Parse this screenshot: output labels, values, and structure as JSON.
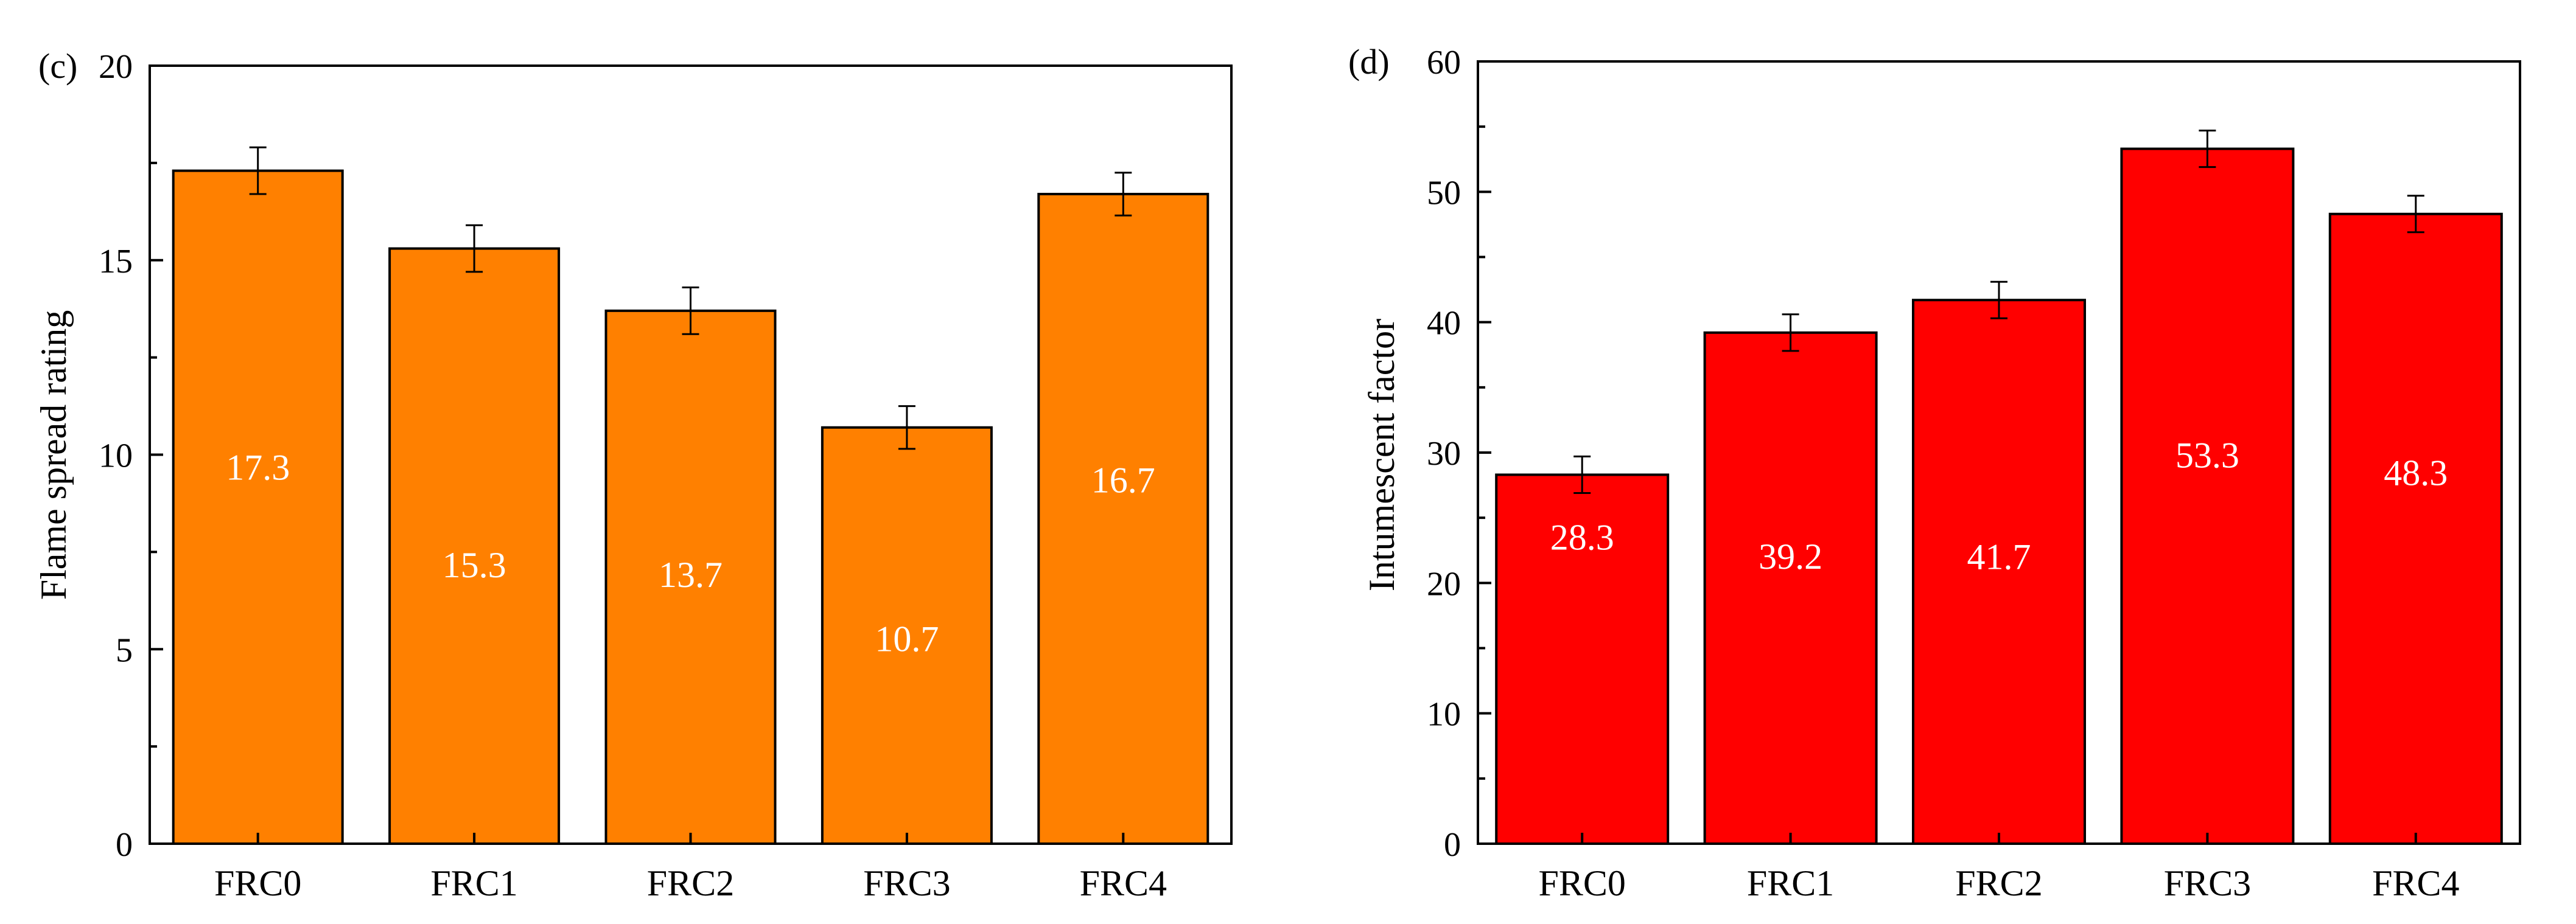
{
  "chart_data": [
    {
      "panel_label": "(c)",
      "type": "bar",
      "categories": [
        "FRC0",
        "FRC1",
        "FRC2",
        "FRC3",
        "FRC4"
      ],
      "values": [
        17.3,
        15.3,
        13.7,
        10.7,
        16.7
      ],
      "errors": [
        0.6,
        0.6,
        0.6,
        0.55,
        0.55
      ],
      "data_labels": [
        "17.3",
        "15.3",
        "13.7",
        "10.7",
        "16.7"
      ],
      "ylabel": "Flame spread rating",
      "xlabel": "",
      "ylim": [
        0,
        20
      ],
      "yticks": [
        0,
        5,
        10,
        15,
        20
      ],
      "ytick_labels": [
        "0",
        "5",
        "10",
        "15",
        "20"
      ],
      "color": "#FF8000",
      "grid": false
    },
    {
      "panel_label": "(d)",
      "type": "bar",
      "categories": [
        "FRC0",
        "FRC1",
        "FRC2",
        "FRC3",
        "FRC4"
      ],
      "values": [
        28.3,
        39.2,
        41.7,
        53.3,
        48.3
      ],
      "errors": [
        1.4,
        1.4,
        1.4,
        1.4,
        1.4
      ],
      "data_labels": [
        "28.3",
        "39.2",
        "41.7",
        "53.3",
        "48.3"
      ],
      "ylabel": "Intumescent factor",
      "xlabel": "",
      "ylim": [
        0,
        60
      ],
      "yticks": [
        0,
        10,
        20,
        30,
        40,
        50,
        60
      ],
      "ytick_labels": [
        "0",
        "10",
        "20",
        "30",
        "40",
        "50",
        "60"
      ],
      "color": "#FF0000",
      "grid": false
    }
  ]
}
